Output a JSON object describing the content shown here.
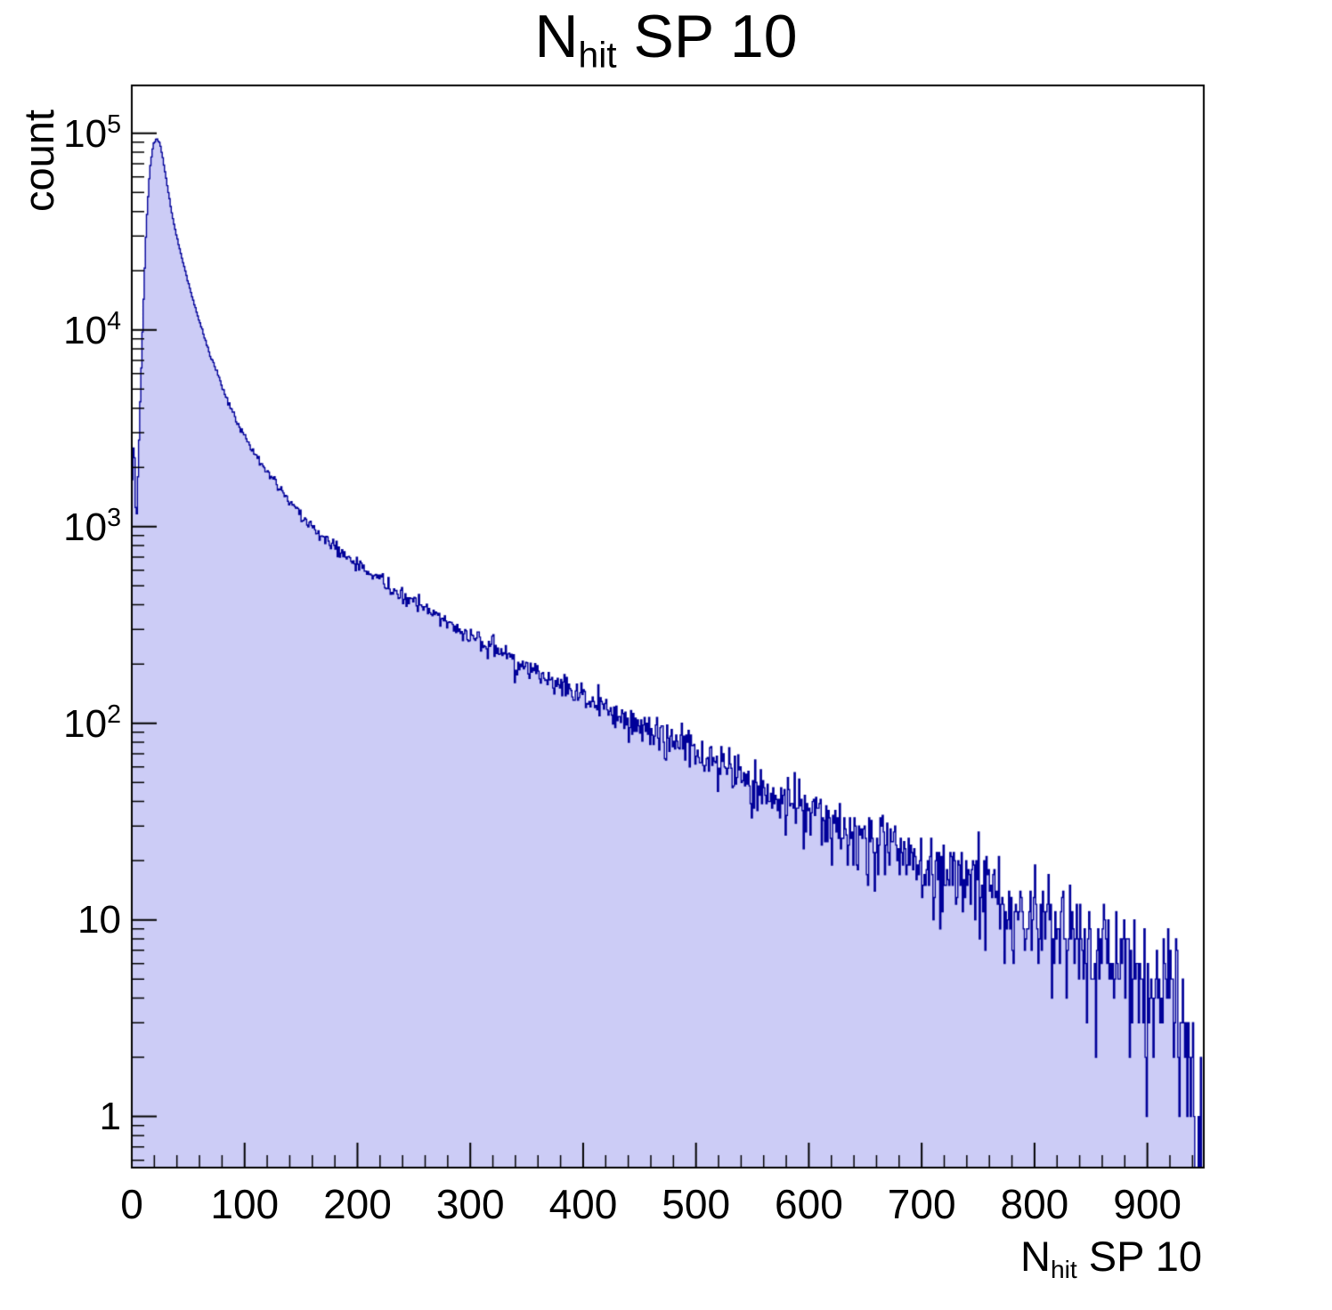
{
  "title": {
    "prefix": "N",
    "sub": "hit",
    "rest": " SP 10"
  },
  "y_axis": {
    "label": "count",
    "scale": "log",
    "min": 0.55,
    "max": 175000,
    "major_ticks": [
      {
        "text": "1",
        "value": 1
      },
      {
        "text": "10",
        "value": 10
      },
      {
        "base": "10",
        "exp": "2",
        "value": 100
      },
      {
        "base": "10",
        "exp": "3",
        "value": 1000
      },
      {
        "base": "10",
        "exp": "4",
        "value": 10000
      },
      {
        "base": "10",
        "exp": "5",
        "value": 100000
      }
    ]
  },
  "x_axis": {
    "label_prefix": "N",
    "label_sub": "hit",
    "label_rest": " SP 10",
    "min": 0,
    "max": 950,
    "minor_tick_step": 20,
    "major_ticks": [
      {
        "text": "0",
        "value": 0
      },
      {
        "text": "100",
        "value": 100
      },
      {
        "text": "200",
        "value": 200
      },
      {
        "text": "300",
        "value": 300
      },
      {
        "text": "400",
        "value": 400
      },
      {
        "text": "500",
        "value": 500
      },
      {
        "text": "600",
        "value": 600
      },
      {
        "text": "700",
        "value": 700
      },
      {
        "text": "800",
        "value": 800
      },
      {
        "text": "900",
        "value": 900
      }
    ]
  },
  "colors": {
    "fill": "#ccccf6",
    "line": "#000099",
    "frame": "#000000",
    "background": "#ffffff"
  },
  "chart_data": {
    "type": "bar",
    "subtype": "histogram",
    "title": "N_hit SP 10",
    "xlabel": "N_hit SP 10",
    "ylabel": "count",
    "x_range": [
      0,
      950
    ],
    "y_range": [
      0.55,
      175000
    ],
    "y_scale": "log",
    "bin_width": 1,
    "noise": "poisson",
    "seed": 20,
    "envelope_points": [
      [
        0,
        1500
      ],
      [
        2,
        3000
      ],
      [
        4,
        900
      ],
      [
        7,
        3500
      ],
      [
        10,
        12000
      ],
      [
        13,
        35000
      ],
      [
        16,
        65000
      ],
      [
        19,
        88000
      ],
      [
        22,
        94000
      ],
      [
        25,
        89000
      ],
      [
        28,
        72000
      ],
      [
        32,
        52000
      ],
      [
        36,
        38000
      ],
      [
        40,
        29500
      ],
      [
        45,
        22500
      ],
      [
        50,
        17500
      ],
      [
        55,
        13800
      ],
      [
        60,
        11000
      ],
      [
        65,
        9000
      ],
      [
        70,
        7400
      ],
      [
        75,
        6200
      ],
      [
        80,
        5200
      ],
      [
        85,
        4400
      ],
      [
        90,
        3800
      ],
      [
        95,
        3250
      ],
      [
        100,
        2850
      ],
      [
        110,
        2300
      ],
      [
        120,
        1900
      ],
      [
        130,
        1600
      ],
      [
        140,
        1350
      ],
      [
        150,
        1150
      ],
      [
        160,
        1000
      ],
      [
        170,
        880
      ],
      [
        180,
        790
      ],
      [
        190,
        715
      ],
      [
        200,
        650
      ],
      [
        215,
        560
      ],
      [
        230,
        490
      ],
      [
        245,
        430
      ],
      [
        260,
        380
      ],
      [
        275,
        338
      ],
      [
        290,
        302
      ],
      [
        300,
        278
      ],
      [
        320,
        238
      ],
      [
        340,
        206
      ],
      [
        360,
        180
      ],
      [
        380,
        157
      ],
      [
        400,
        137
      ],
      [
        420,
        120
      ],
      [
        440,
        105
      ],
      [
        460,
        92
      ],
      [
        480,
        80
      ],
      [
        500,
        70
      ],
      [
        520,
        62
      ],
      [
        540,
        54
      ],
      [
        560,
        47
      ],
      [
        580,
        41
      ],
      [
        600,
        36
      ],
      [
        620,
        32
      ],
      [
        640,
        28
      ],
      [
        660,
        25
      ],
      [
        680,
        22
      ],
      [
        700,
        19.5
      ],
      [
        720,
        17.5
      ],
      [
        740,
        15.5
      ],
      [
        760,
        13.8
      ],
      [
        780,
        12.2
      ],
      [
        800,
        10.8
      ],
      [
        820,
        9.6
      ],
      [
        840,
        8.5
      ],
      [
        860,
        7.5
      ],
      [
        880,
        6.6
      ],
      [
        900,
        5.6
      ],
      [
        910,
        4.8
      ],
      [
        920,
        4.0
      ],
      [
        930,
        3.0
      ],
      [
        938,
        2.0
      ],
      [
        944,
        1.2
      ],
      [
        948,
        0.9
      ],
      [
        950,
        0.7
      ]
    ]
  }
}
